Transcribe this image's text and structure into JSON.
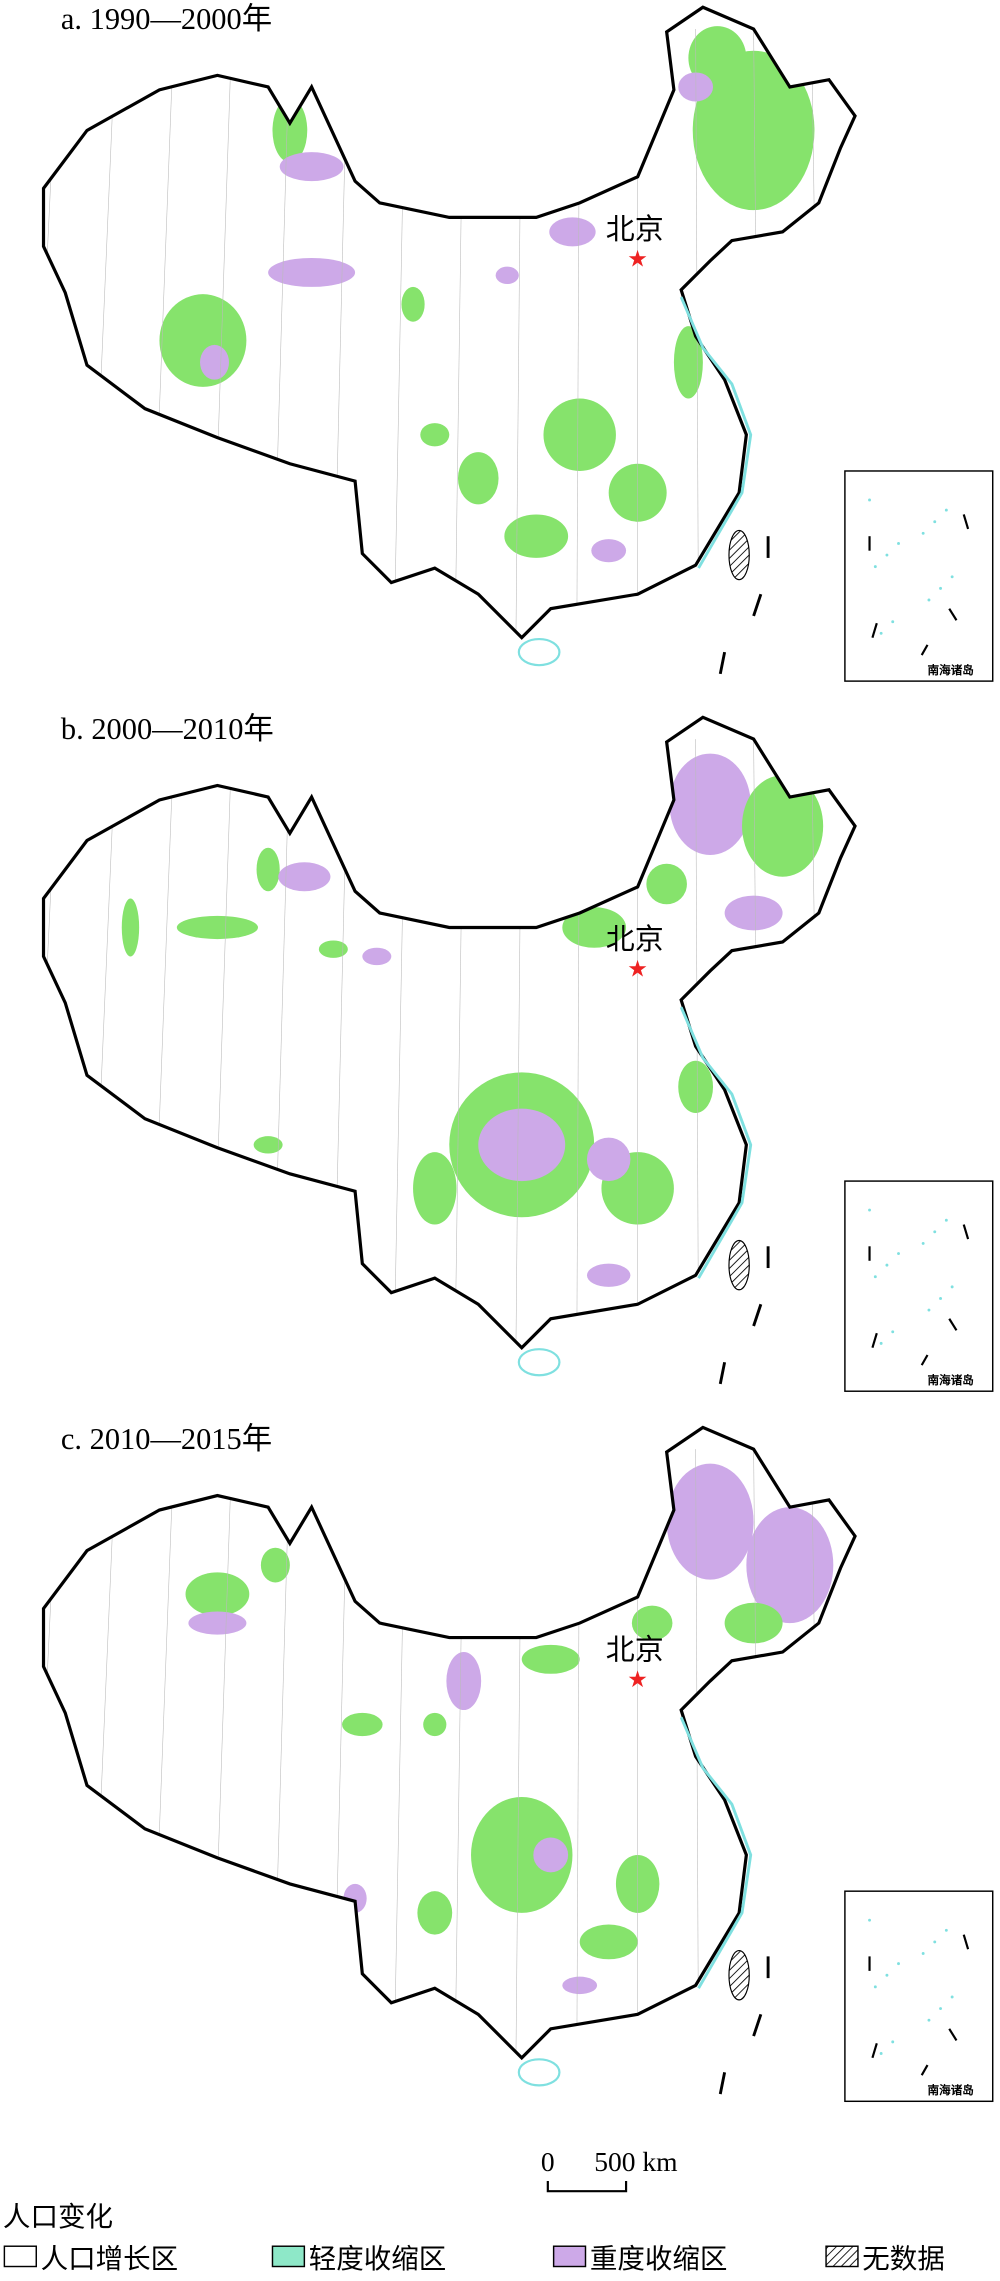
{
  "panels": [
    {
      "title": "a. 1990—2000年",
      "capital": "北京",
      "inset_label": "南海诸岛"
    },
    {
      "title": "b. 2000—2010年",
      "capital": "北京",
      "inset_label": "南海诸岛"
    },
    {
      "title": "c. 2010—2015年",
      "capital": "北京",
      "inset_label": "南海诸岛"
    }
  ],
  "scale_bar": {
    "start": "0",
    "label": "500 km"
  },
  "legend": {
    "title": "人口变化",
    "items": [
      "人口增长区",
      "轻度收缩区",
      "重度收缩区",
      "无数据"
    ]
  }
}
